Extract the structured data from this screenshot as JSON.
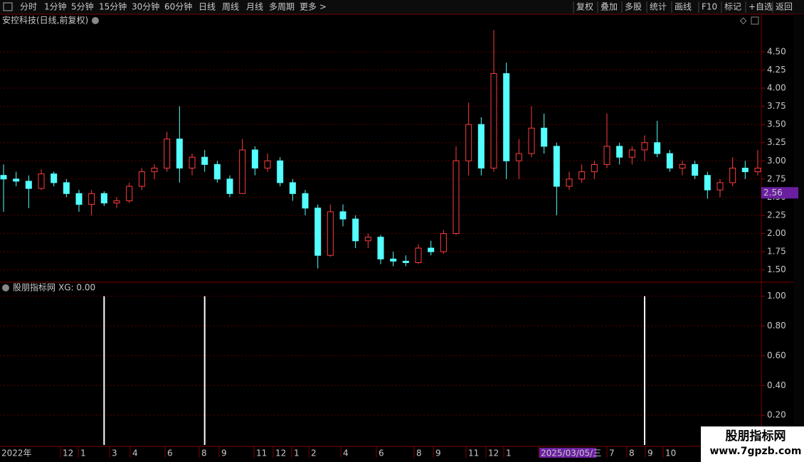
{
  "toolbar": {
    "left": [
      "分时",
      "1分钟",
      "5分钟",
      "15分钟",
      "30分钟",
      "60分钟",
      "日线",
      "周线",
      "月线",
      "多周期",
      "更多 >"
    ],
    "active_index": 6,
    "right": [
      "复权",
      "叠加",
      "多股",
      "统计",
      "画线",
      "F10",
      "标记",
      "+自选",
      "返回"
    ]
  },
  "chart_data": [
    {
      "type": "candlestick",
      "title": "安控科技(日线,前复权)",
      "color_up": "#ff3c3c",
      "color_down": "#54ffff",
      "ylim": [
        1.38,
        4.87
      ],
      "yticks": [
        {
          "value": 1.5,
          "label": "1.50"
        },
        {
          "value": 1.75,
          "label": "1.75"
        },
        {
          "value": 2.0,
          "label": "2.00"
        },
        {
          "value": 2.25,
          "label": "2.25"
        },
        {
          "value": 2.5,
          "label": "2.50"
        },
        {
          "value": 2.75,
          "label": "2.75"
        },
        {
          "value": 3.0,
          "label": "3.00"
        },
        {
          "value": 3.25,
          "label": "3.25"
        },
        {
          "value": 3.5,
          "label": "3.50"
        },
        {
          "value": 3.75,
          "label": "3.75"
        },
        {
          "value": 4.0,
          "label": "4.00"
        },
        {
          "value": 4.25,
          "label": "4.25"
        },
        {
          "value": 4.5,
          "label": "4.50"
        }
      ],
      "cursor_price": {
        "value": 2.56,
        "label": "2.56"
      },
      "candles": [
        [
          2.8,
          2.95,
          2.3,
          2.75
        ],
        [
          2.75,
          2.85,
          2.65,
          2.72
        ],
        [
          2.72,
          2.8,
          2.35,
          2.62
        ],
        [
          2.62,
          2.88,
          2.6,
          2.82
        ],
        [
          2.82,
          2.85,
          2.65,
          2.7
        ],
        [
          2.7,
          2.75,
          2.5,
          2.55
        ],
        [
          2.55,
          2.6,
          2.3,
          2.4
        ],
        [
          2.4,
          2.6,
          2.25,
          2.55
        ],
        [
          2.55,
          2.58,
          2.38,
          2.42
        ],
        [
          2.42,
          2.5,
          2.35,
          2.45
        ],
        [
          2.45,
          2.7,
          2.42,
          2.65
        ],
        [
          2.65,
          2.9,
          2.6,
          2.85
        ],
        [
          2.85,
          2.95,
          2.75,
          2.9
        ],
        [
          2.9,
          3.4,
          2.85,
          3.3
        ],
        [
          3.3,
          3.75,
          2.7,
          2.9
        ],
        [
          2.9,
          3.1,
          2.8,
          3.05
        ],
        [
          3.05,
          3.15,
          2.85,
          2.95
        ],
        [
          2.95,
          3.0,
          2.7,
          2.75
        ],
        [
          2.75,
          2.8,
          2.5,
          2.55
        ],
        [
          2.55,
          3.3,
          2.55,
          3.15
        ],
        [
          3.15,
          3.2,
          2.8,
          2.9
        ],
        [
          2.9,
          3.1,
          2.85,
          3.0
        ],
        [
          3.0,
          3.05,
          2.65,
          2.7
        ],
        [
          2.7,
          2.75,
          2.45,
          2.55
        ],
        [
          2.55,
          2.6,
          2.25,
          2.35
        ],
        [
          2.35,
          2.4,
          1.52,
          1.7
        ],
        [
          1.7,
          2.4,
          1.68,
          2.3
        ],
        [
          2.3,
          2.4,
          2.1,
          2.2
        ],
        [
          2.2,
          2.25,
          1.8,
          1.9
        ],
        [
          1.9,
          2.0,
          1.8,
          1.95
        ],
        [
          1.95,
          1.98,
          1.58,
          1.65
        ],
        [
          1.65,
          1.75,
          1.55,
          1.62
        ],
        [
          1.62,
          1.7,
          1.55,
          1.6
        ],
        [
          1.6,
          1.85,
          1.58,
          1.8
        ],
        [
          1.8,
          1.9,
          1.7,
          1.75
        ],
        [
          1.75,
          2.05,
          1.72,
          2.0
        ],
        [
          2.0,
          3.2,
          1.98,
          3.0
        ],
        [
          3.0,
          3.8,
          2.8,
          3.5
        ],
        [
          3.5,
          3.6,
          2.8,
          2.9
        ],
        [
          2.9,
          4.8,
          2.85,
          4.2
        ],
        [
          4.2,
          4.35,
          2.75,
          3.0
        ],
        [
          3.0,
          3.3,
          2.75,
          3.1
        ],
        [
          3.1,
          3.75,
          3.05,
          3.45
        ],
        [
          3.45,
          3.65,
          3.1,
          3.2
        ],
        [
          3.2,
          3.25,
          2.25,
          2.65
        ],
        [
          2.65,
          2.85,
          2.6,
          2.75
        ],
        [
          2.75,
          2.95,
          2.7,
          2.85
        ],
        [
          2.85,
          3.0,
          2.75,
          2.95
        ],
        [
          2.95,
          3.65,
          2.9,
          3.2
        ],
        [
          3.2,
          3.25,
          2.95,
          3.05
        ],
        [
          3.05,
          3.2,
          2.95,
          3.15
        ],
        [
          3.15,
          3.35,
          3.0,
          3.25
        ],
        [
          3.25,
          3.55,
          3.05,
          3.1
        ],
        [
          3.1,
          3.15,
          2.85,
          2.9
        ],
        [
          2.9,
          3.0,
          2.8,
          2.95
        ],
        [
          2.95,
          3.0,
          2.75,
          2.8
        ],
        [
          2.8,
          2.85,
          2.48,
          2.6
        ],
        [
          2.6,
          2.75,
          2.5,
          2.7
        ],
        [
          2.7,
          3.05,
          2.65,
          2.9
        ],
        [
          2.9,
          3.0,
          2.75,
          2.85
        ],
        [
          2.85,
          3.15,
          2.8,
          2.9
        ]
      ]
    },
    {
      "type": "spike",
      "title": "股朋指标网",
      "readout": "XG: 0.00",
      "color": "#ffffff",
      "ylim": [
        0,
        1.08
      ],
      "yticks": [
        {
          "value": 0.2,
          "label": "0.20"
        },
        {
          "value": 0.4,
          "label": "0.40"
        },
        {
          "value": 0.6,
          "label": "0.60"
        },
        {
          "value": 0.8,
          "label": "0.80"
        },
        {
          "value": 1.0,
          "label": "1.00"
        }
      ],
      "values": [
        0,
        0,
        0,
        0,
        0,
        0,
        0,
        0,
        1,
        0,
        0,
        0,
        0,
        0,
        0,
        0,
        1,
        0,
        0,
        0,
        0,
        0,
        0,
        0,
        0,
        0,
        0,
        0,
        0,
        0,
        0,
        0,
        0,
        0,
        0,
        0,
        0,
        0,
        0,
        0,
        0,
        0,
        0,
        0,
        0,
        0,
        0,
        0,
        0,
        0,
        0,
        1,
        0,
        0,
        0,
        0,
        0,
        0,
        0,
        0,
        0
      ]
    }
  ],
  "time_labels": [
    "2022年",
    "12",
    "1",
    "3",
    "4",
    "6",
    "8",
    "9",
    "11",
    "12",
    "1",
    "2",
    "4",
    "6",
    "8",
    "9",
    "11",
    "12",
    "1",
    "2025/03/05/三",
    "7",
    "8",
    "9",
    "10"
  ],
  "watermark": {
    "title": "股朋指标网",
    "url": "www.7gpzb.com"
  }
}
